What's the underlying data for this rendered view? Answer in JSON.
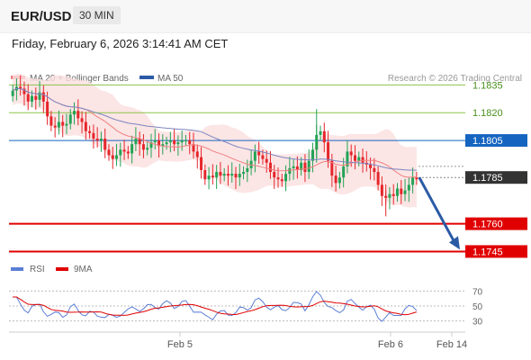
{
  "header": {
    "symbol": "EUR/USD",
    "timeframe": "30 MIN"
  },
  "datetime": "Friday, February 6, 2026 3:14:41 AM CET",
  "legend": {
    "ma20": "MA 20 + Bollinger Bands",
    "ma50": "MA 50",
    "credit": "Research © 2026 Trading Central"
  },
  "rsi_legend": {
    "rsi": "RSI",
    "ma9": "9MA"
  },
  "chart_data": {
    "type": "candlestick",
    "instrument": "EUR/USD",
    "interval": "30 MIN",
    "y_range": [
      1.1735,
      1.1842
    ],
    "levels": [
      {
        "label": "1.1835",
        "value": 1.1835,
        "kind": "resistance",
        "color": "#8bc34a"
      },
      {
        "label": "1.1820",
        "value": 1.182,
        "kind": "resistance",
        "color": "#8bc34a"
      },
      {
        "label": "1.1805",
        "value": 1.1805,
        "kind": "pivot",
        "color": "#1565c0"
      },
      {
        "label": "1.1785",
        "value": 1.1785,
        "kind": "last",
        "color": "#333333"
      },
      {
        "label": "1.1760",
        "value": 1.176,
        "kind": "support",
        "color": "#e00000"
      },
      {
        "label": "1.1745",
        "value": 1.1745,
        "kind": "support",
        "color": "#e00000"
      }
    ],
    "x_ticks": [
      "Feb 5",
      "Feb 6",
      "Feb 14"
    ],
    "rsi": {
      "ticks": [
        70,
        50,
        30
      ],
      "range": [
        20,
        80
      ]
    },
    "colors": {
      "up": "#23a355",
      "down": "#e5262b",
      "ma20": "#f08080",
      "band": "#fbdfdf",
      "ma50": "#7a86c2",
      "arrow": "#2b5aa5",
      "rsi": "#5b7ed6",
      "rsi_ma": "#e00000"
    }
  }
}
